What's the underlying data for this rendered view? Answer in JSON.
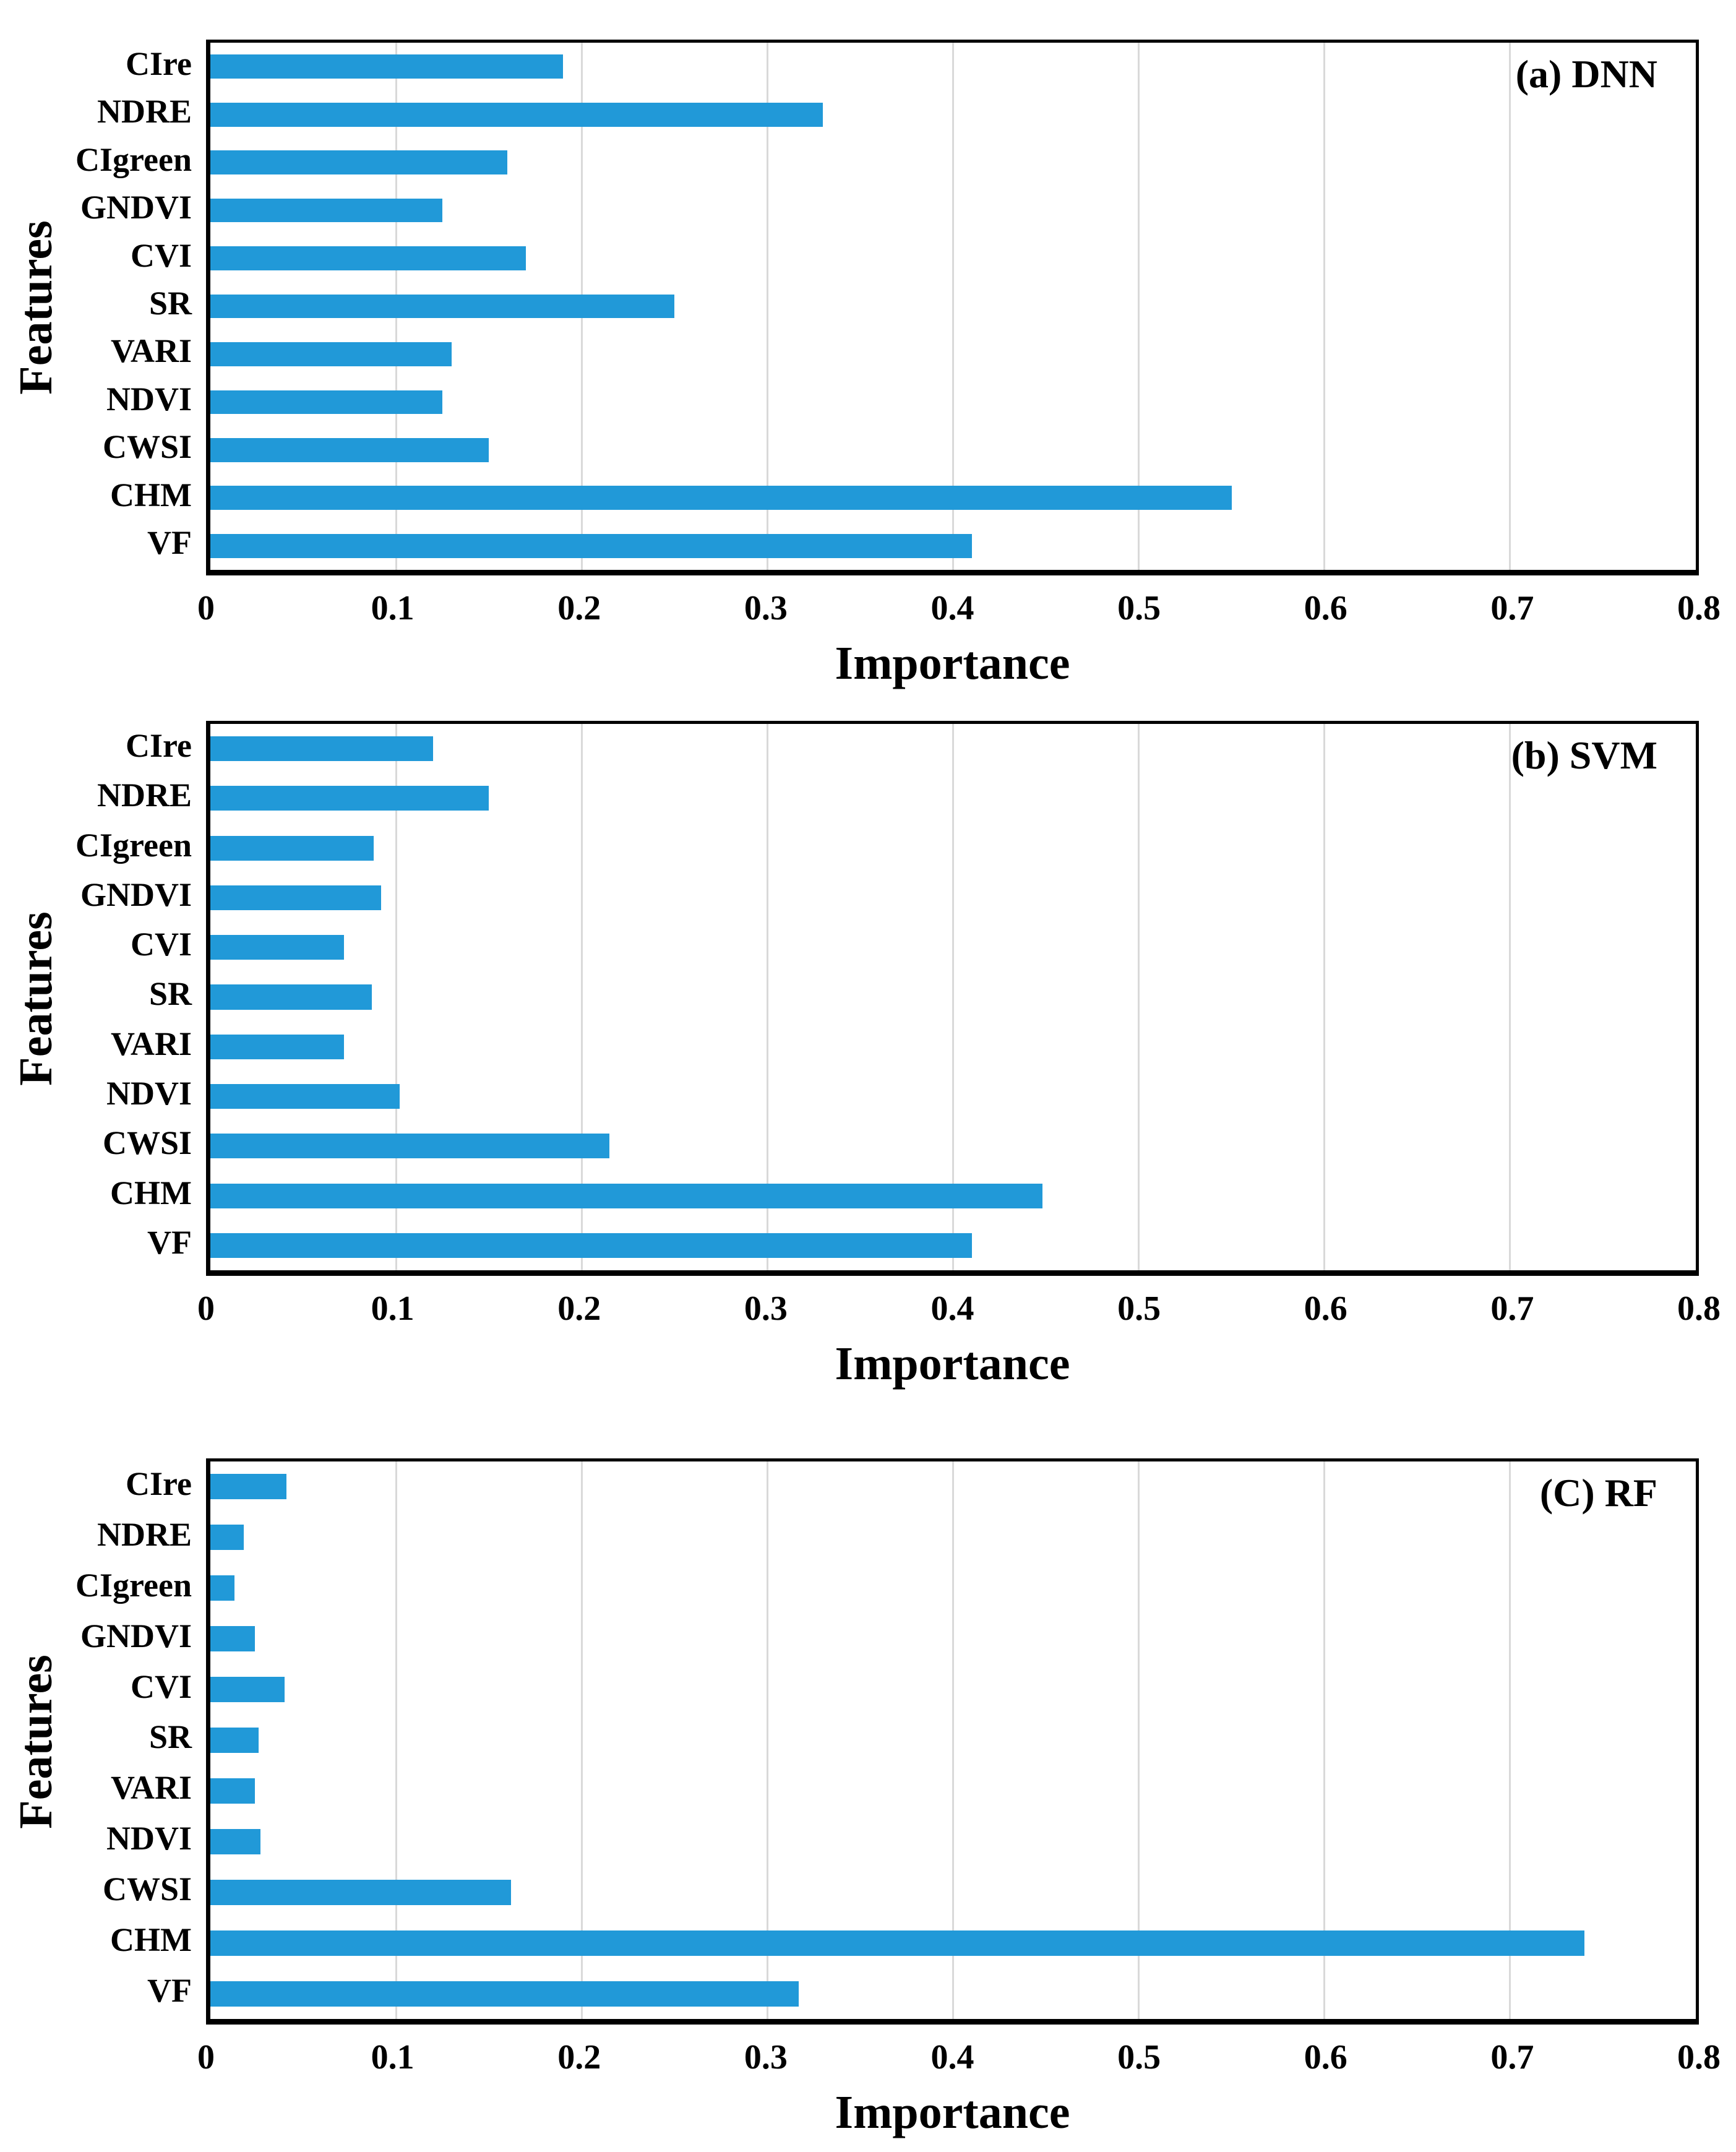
{
  "figure": {
    "background": "#ffffff",
    "bar_color": "#2199d8",
    "grid_color": "#d9d9d9",
    "frame_color": "#000000",
    "text_color": "#000000"
  },
  "axis": {
    "xlabel": "Importance",
    "ylabel": "Features",
    "xmin": 0,
    "xmax": 0.8,
    "xtick_labels": [
      "0",
      "0.1",
      "0.2",
      "0.3",
      "0.4",
      "0.5",
      "0.6",
      "0.7",
      "0.8"
    ]
  },
  "chart_data": [
    {
      "type": "bar",
      "orientation": "horizontal",
      "title": "(a) DNN",
      "xlabel": "Importance",
      "ylabel": "Features",
      "xlim": [
        0,
        0.8
      ],
      "grid": true,
      "legend": false,
      "categories": [
        "CIre",
        "NDRE",
        "CIgreen",
        "GNDVI",
        "CVI",
        "SR",
        "VARI",
        "NDVI",
        "CWSI",
        "CHM",
        "VF"
      ],
      "values": [
        0.19,
        0.33,
        0.16,
        0.125,
        0.17,
        0.25,
        0.13,
        0.125,
        0.15,
        0.55,
        0.41
      ]
    },
    {
      "type": "bar",
      "orientation": "horizontal",
      "title": "(b) SVM",
      "xlabel": "Importance",
      "ylabel": "Features",
      "xlim": [
        0,
        0.8
      ],
      "grid": true,
      "legend": false,
      "categories": [
        "CIre",
        "NDRE",
        "CIgreen",
        "GNDVI",
        "CVI",
        "SR",
        "VARI",
        "NDVI",
        "CWSI",
        "CHM",
        "VF"
      ],
      "values": [
        0.12,
        0.15,
        0.088,
        0.092,
        0.072,
        0.087,
        0.072,
        0.102,
        0.215,
        0.448,
        0.41
      ]
    },
    {
      "type": "bar",
      "orientation": "horizontal",
      "title": "(C) RF",
      "xlabel": "Importance",
      "ylabel": "Features",
      "xlim": [
        0,
        0.8
      ],
      "grid": true,
      "legend": false,
      "categories": [
        "CIre",
        "NDRE",
        "CIgreen",
        "GNDVI",
        "CVI",
        "SR",
        "VARI",
        "NDVI",
        "CWSI",
        "CHM",
        "VF"
      ],
      "values": [
        0.041,
        0.018,
        0.013,
        0.024,
        0.04,
        0.026,
        0.024,
        0.027,
        0.162,
        0.74,
        0.317
      ]
    }
  ]
}
